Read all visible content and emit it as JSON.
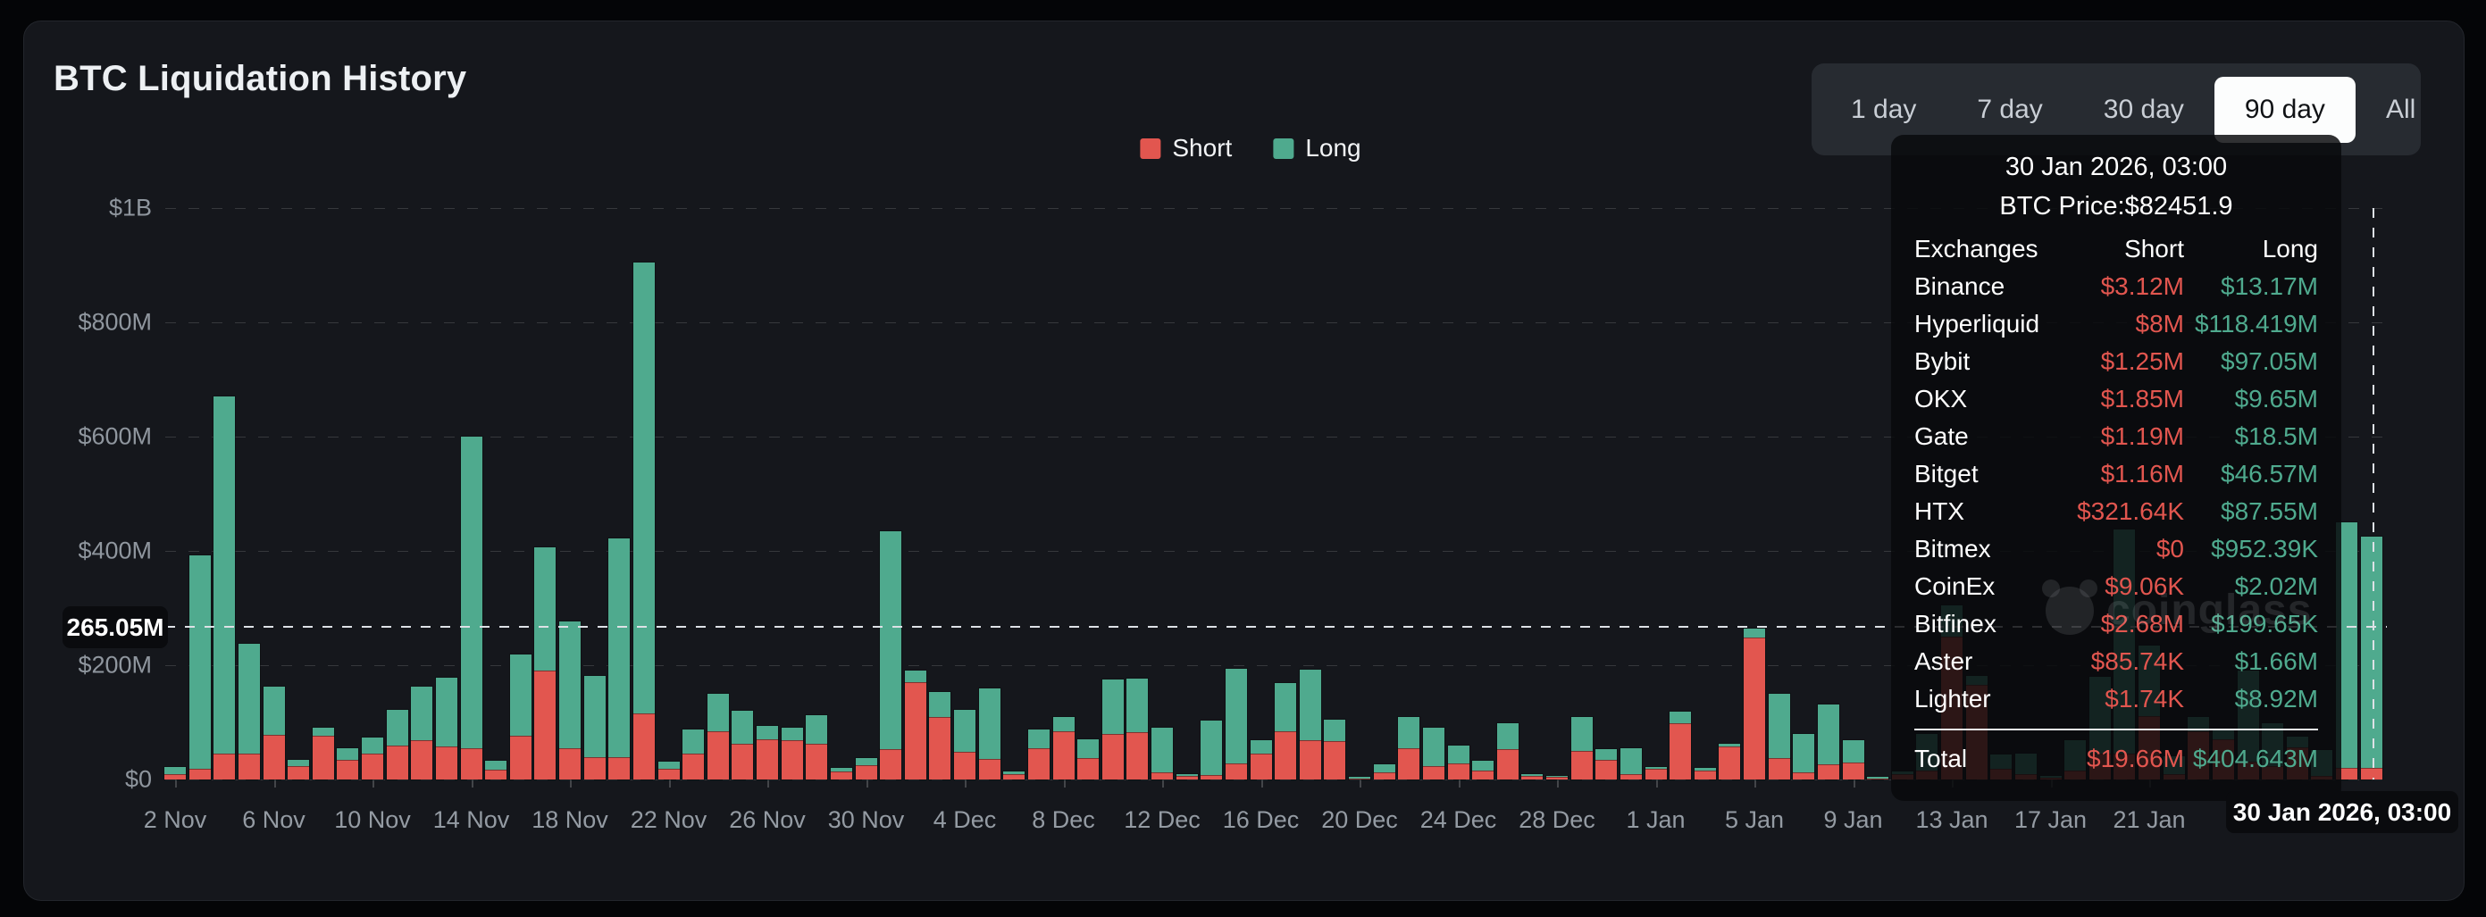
{
  "header": {
    "title": "BTC Liquidation History"
  },
  "time_range": {
    "options": [
      "1 day",
      "7 day",
      "30 day",
      "90 day",
      "All"
    ],
    "active": "90 day"
  },
  "legend": [
    {
      "label": "Short",
      "color": "#e2564f"
    },
    {
      "label": "Long",
      "color": "#4faa8e"
    }
  ],
  "colors": {
    "short": "#e2564f",
    "long": "#4faa8e",
    "card_bg": "#15171c",
    "page_bg": "#040507",
    "tooltip_bg": "rgba(8,9,12,0.84)",
    "active_button_bg": "#fcfdfd"
  },
  "y_axis": {
    "labels": [
      "$1B",
      "$800M",
      "$600M",
      "$400M",
      "$200M",
      "$0"
    ]
  },
  "x_axis": {
    "tick_labels": [
      "2 Nov",
      "6 Nov",
      "10 Nov",
      "14 Nov",
      "18 Nov",
      "22 Nov",
      "26 Nov",
      "30 Nov",
      "4 Dec",
      "8 Dec",
      "12 Dec",
      "16 Dec",
      "20 Dec",
      "24 Dec",
      "28 Dec",
      "1 Jan",
      "5 Jan",
      "9 Jan",
      "13 Jan",
      "17 Jan",
      "21 Jan"
    ]
  },
  "crosshair": {
    "y_label": "265.05M",
    "x_label": "30 Jan 2026, 03:00"
  },
  "watermark": "coinglass",
  "tooltip": {
    "title": "30 Jan 2026, 03:00",
    "subtitle": "BTC Price:$82451.9",
    "columns": [
      "Exchanges",
      "Short",
      "Long"
    ],
    "rows": [
      {
        "name": "Binance",
        "short": "$3.12M",
        "long": "$13.17M"
      },
      {
        "name": "Hyperliquid",
        "short": "$8M",
        "long": "$118.419M"
      },
      {
        "name": "Bybit",
        "short": "$1.25M",
        "long": "$97.05M"
      },
      {
        "name": "OKX",
        "short": "$1.85M",
        "long": "$9.65M"
      },
      {
        "name": "Gate",
        "short": "$1.19M",
        "long": "$18.5M"
      },
      {
        "name": "Bitget",
        "short": "$1.16M",
        "long": "$46.57M"
      },
      {
        "name": "HTX",
        "short": "$321.64K",
        "long": "$87.55M"
      },
      {
        "name": "Bitmex",
        "short": "$0",
        "long": "$952.39K"
      },
      {
        "name": "CoinEx",
        "short": "$9.06K",
        "long": "$2.02M"
      },
      {
        "name": "Bitfinex",
        "short": "$2.68M",
        "long": "$199.65K"
      },
      {
        "name": "Aster",
        "short": "$85.74K",
        "long": "$1.66M"
      },
      {
        "name": "Lighter",
        "short": "$1.74K",
        "long": "$8.92M"
      }
    ],
    "total": {
      "name": "Total",
      "short": "$19.66M",
      "long": "$404.643M"
    }
  },
  "chart_data": {
    "type": "bar",
    "stacked": true,
    "title": "BTC Liquidation History",
    "unit": "$M",
    "ylim": [
      0,
      1000
    ],
    "y_ticks_m": [
      1000,
      800,
      600,
      400,
      200,
      0
    ],
    "grid": true,
    "legend_position": "top-center",
    "crosshair": {
      "y_value_m": 265.05,
      "x_date": "30 Jan 2026, 03:00"
    },
    "x": [
      "2 Nov",
      "3 Nov",
      "4 Nov",
      "5 Nov",
      "6 Nov",
      "7 Nov",
      "8 Nov",
      "9 Nov",
      "10 Nov",
      "11 Nov",
      "12 Nov",
      "13 Nov",
      "14 Nov",
      "15 Nov",
      "16 Nov",
      "17 Nov",
      "18 Nov",
      "19 Nov",
      "20 Nov",
      "21 Nov",
      "22 Nov",
      "23 Nov",
      "24 Nov",
      "25 Nov",
      "26 Nov",
      "27 Nov",
      "28 Nov",
      "29 Nov",
      "30 Nov",
      "1 Dec",
      "2 Dec",
      "3 Dec",
      "4 Dec",
      "5 Dec",
      "6 Dec",
      "7 Dec",
      "8 Dec",
      "9 Dec",
      "10 Dec",
      "11 Dec",
      "12 Dec",
      "13 Dec",
      "14 Dec",
      "15 Dec",
      "16 Dec",
      "17 Dec",
      "18 Dec",
      "19 Dec",
      "20 Dec",
      "21 Dec",
      "22 Dec",
      "23 Dec",
      "24 Dec",
      "25 Dec",
      "26 Dec",
      "27 Dec",
      "28 Dec",
      "29 Dec",
      "30 Dec",
      "31 Dec",
      "1 Jan",
      "2 Jan",
      "3 Jan",
      "4 Jan",
      "5 Jan",
      "6 Jan",
      "7 Jan",
      "8 Jan",
      "9 Jan",
      "10 Jan",
      "11 Jan",
      "12 Jan",
      "13 Jan",
      "14 Jan",
      "15 Jan",
      "16 Jan",
      "17 Jan",
      "18 Jan",
      "19 Jan",
      "20 Jan",
      "21 Jan",
      "22 Jan",
      "23 Jan",
      "24 Jan",
      "25 Jan",
      "26 Jan",
      "27 Jan",
      "28 Jan",
      "29 Jan",
      "30 Jan"
    ],
    "series": [
      {
        "name": "Short",
        "color": "#e2564f",
        "values": [
          9,
          19,
          45,
          45,
          78,
          23,
          76,
          35,
          45,
          60,
          68,
          58,
          55,
          17,
          77,
          190,
          54,
          39,
          39,
          115,
          18,
          45,
          85,
          63,
          70,
          69,
          63,
          14,
          25,
          53,
          170,
          110,
          49,
          36,
          10,
          54,
          85,
          37,
          80,
          83,
          12,
          6,
          8,
          28,
          45,
          85,
          69,
          67,
          2,
          12,
          54,
          24,
          28,
          15,
          53,
          6,
          4,
          50,
          34,
          10,
          18,
          98,
          15,
          58,
          248,
          37,
          12,
          27,
          29,
          2,
          10,
          15,
          250,
          166,
          19,
          10,
          3,
          15,
          45,
          46,
          111,
          10,
          85,
          70,
          31,
          23,
          57,
          6,
          20,
          19.66
        ]
      },
      {
        "name": "Long",
        "color": "#4faa8e",
        "values": [
          13,
          373,
          625,
          192,
          84,
          11,
          15,
          20,
          28,
          62,
          95,
          120,
          545,
          16,
          142,
          217,
          223,
          143,
          383,
          790,
          13,
          42,
          65,
          57,
          23,
          21,
          50,
          6,
          13,
          381,
          21,
          43,
          73,
          123,
          4,
          33,
          24,
          33,
          95,
          93,
          78,
          4,
          95,
          166,
          24,
          83,
          123,
          37,
          2,
          15,
          56,
          67,
          31,
          18,
          46,
          4,
          2,
          60,
          19,
          45,
          4,
          20,
          5,
          5,
          16,
          113,
          67,
          104,
          40,
          3,
          4,
          65,
          55,
          16,
          25,
          36,
          4,
          53,
          135,
          392,
          124,
          31,
          25,
          18,
          159,
          75,
          18,
          46,
          430,
          404.64
        ]
      }
    ]
  }
}
